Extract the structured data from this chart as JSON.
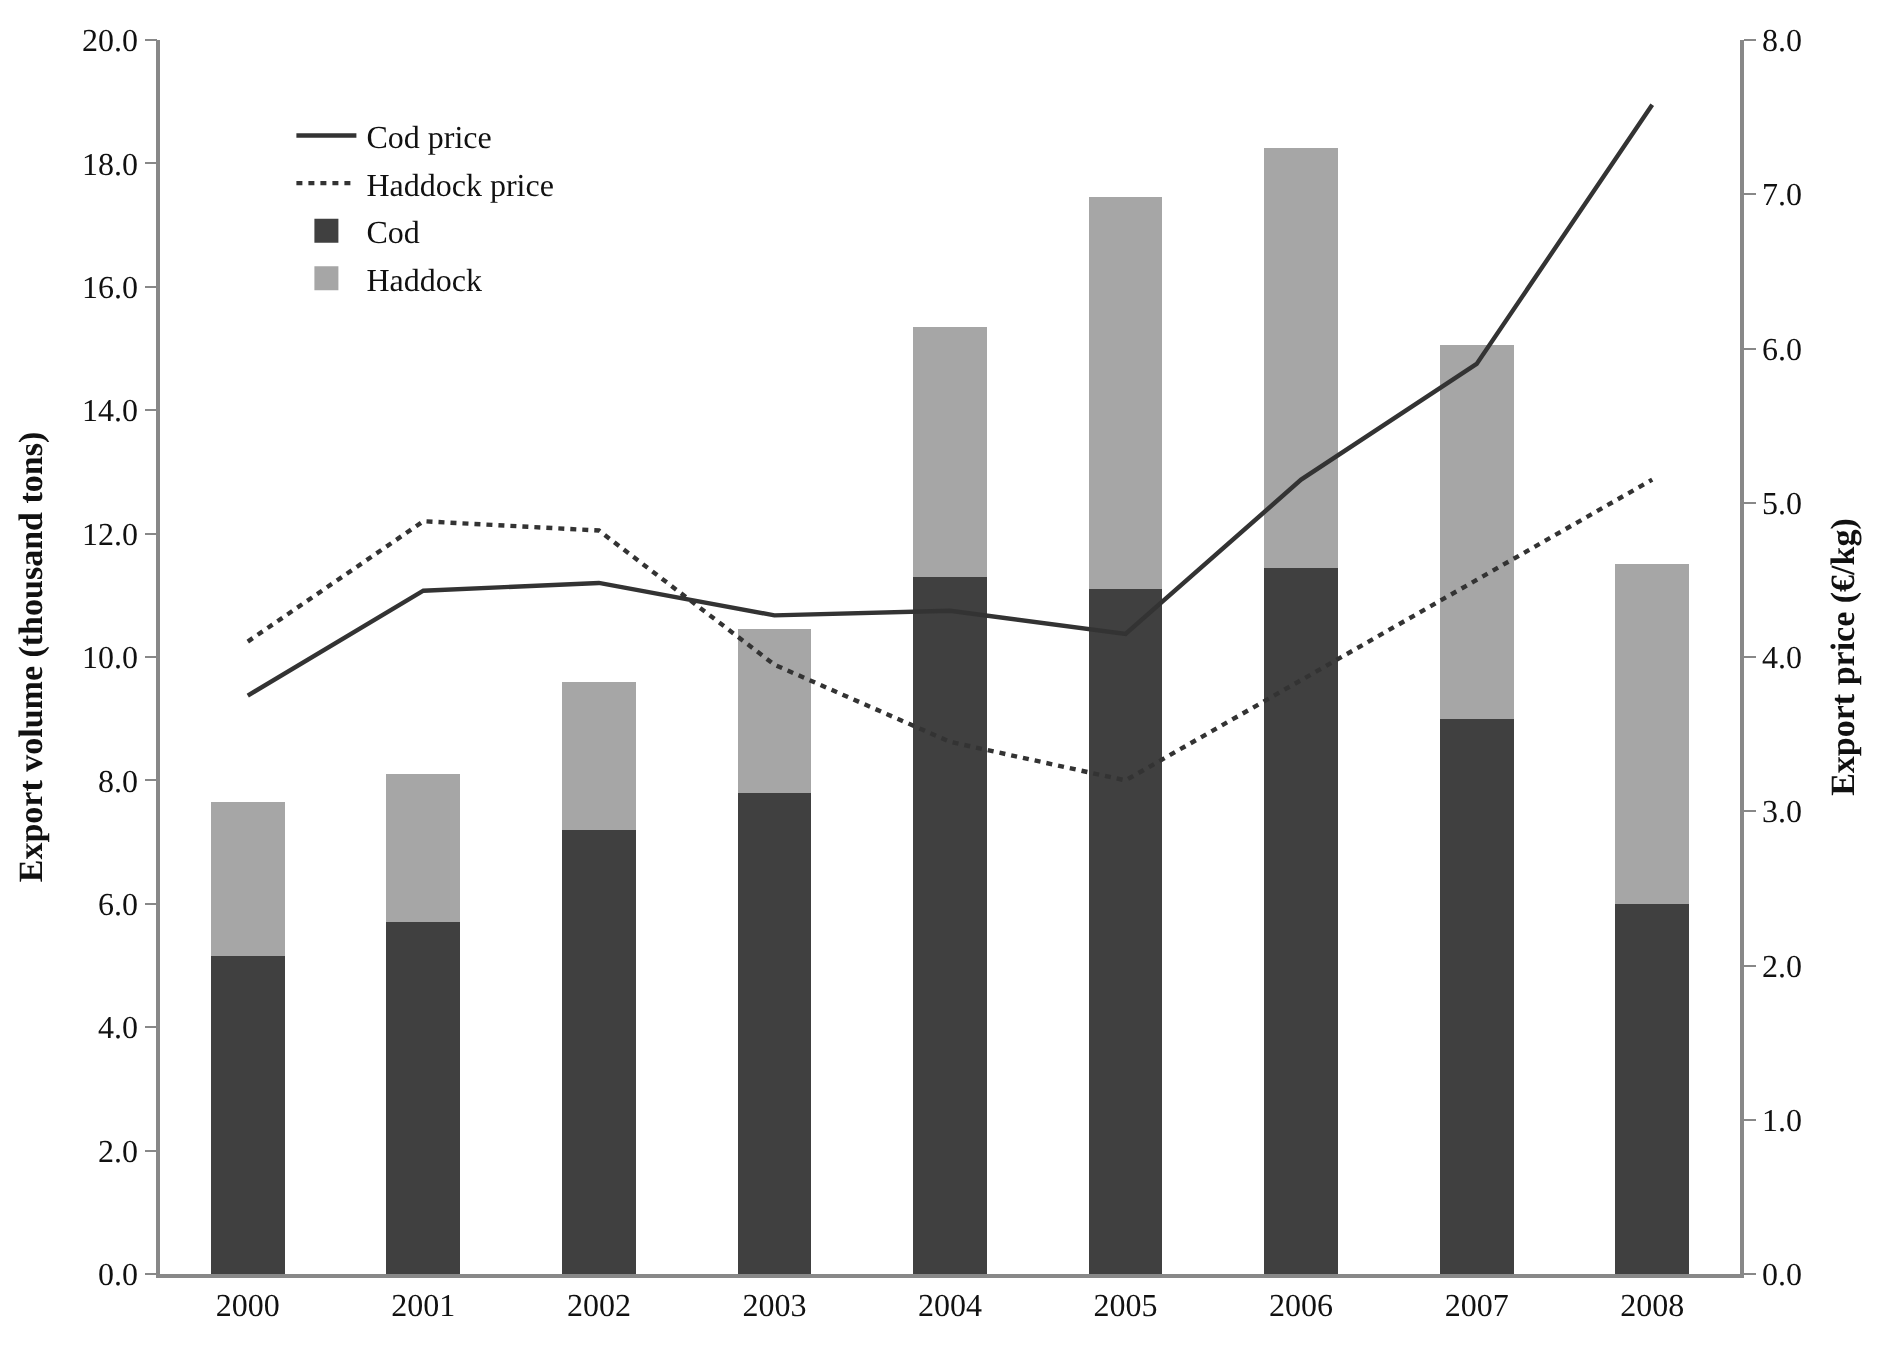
{
  "chart_data": {
    "type": "bar",
    "stacked": true,
    "categories": [
      "2000",
      "2001",
      "2002",
      "2003",
      "2004",
      "2005",
      "2006",
      "2007",
      "2008"
    ],
    "ylabel": "Export volume (thousand tons)",
    "y2label": "Export price (€/kg)",
    "ylim": [
      0,
      20
    ],
    "yticks": [
      {
        "value": 0,
        "label": "0.0"
      },
      {
        "value": 2,
        "label": "2.0"
      },
      {
        "value": 4,
        "label": "4.0"
      },
      {
        "value": 6,
        "label": "6.0"
      },
      {
        "value": 8,
        "label": "8.0"
      },
      {
        "value": 10,
        "label": "10.0"
      },
      {
        "value": 12,
        "label": "12.0"
      },
      {
        "value": 14,
        "label": "14.0"
      },
      {
        "value": 16,
        "label": "16.0"
      },
      {
        "value": 18,
        "label": "18.0"
      },
      {
        "value": 20,
        "label": "20.0"
      }
    ],
    "y2lim": [
      0,
      8
    ],
    "y2ticks": [
      {
        "value": 0,
        "label": "0.0"
      },
      {
        "value": 1,
        "label": "1.0"
      },
      {
        "value": 2,
        "label": "2.0"
      },
      {
        "value": 3,
        "label": "3.0"
      },
      {
        "value": 4,
        "label": "4.0"
      },
      {
        "value": 5,
        "label": "5.0"
      },
      {
        "value": 6,
        "label": "6.0"
      },
      {
        "value": 7,
        "label": "7.0"
      },
      {
        "value": 8,
        "label": "8.0"
      }
    ],
    "legend": "top left",
    "series": [
      {
        "name": "Cod",
        "color": "#404040",
        "values": [
          5.15,
          5.7,
          7.2,
          7.8,
          11.3,
          11.1,
          11.45,
          9.0,
          6.0
        ]
      },
      {
        "name": "Haddock",
        "color": "#a6a6a6",
        "values": [
          2.5,
          2.4,
          2.4,
          2.65,
          4.05,
          6.35,
          6.8,
          6.05,
          5.5
        ]
      },
      {
        "name": "Haddock price",
        "type": "line",
        "axis": "y2",
        "line_style": "dotted",
        "color": "#333333",
        "values": [
          4.1,
          4.88,
          4.82,
          3.95,
          3.45,
          3.2,
          3.85,
          4.5,
          5.15
        ]
      },
      {
        "name": "Cod price",
        "type": "line",
        "axis": "y2",
        "line_style": "solid",
        "color": "#333333",
        "values": [
          3.75,
          4.43,
          4.48,
          4.27,
          4.3,
          4.15,
          5.15,
          5.9,
          7.58
        ]
      }
    ]
  }
}
